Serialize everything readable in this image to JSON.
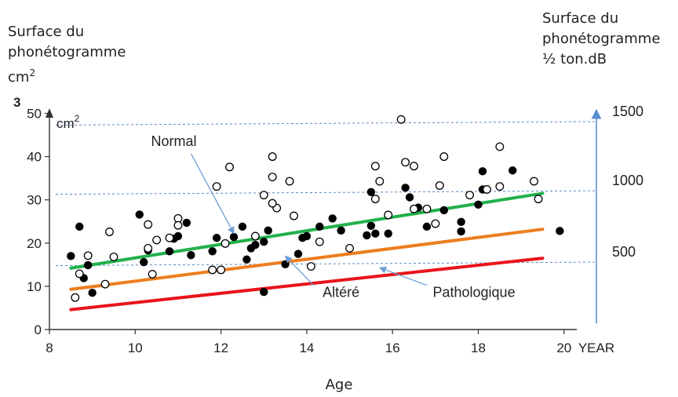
{
  "labels": {
    "left_axis_title_l1": "Surface du",
    "left_axis_title_l2": "phonétogramme",
    "left_axis_unit_base": "cm",
    "left_axis_unit_sup": "2",
    "right_axis_title_l1": "Surface du",
    "right_axis_title_l2": "phonétogramme",
    "right_axis_title_l3": "½ ton.dB",
    "x_axis_title": "Age",
    "panel_number": "3",
    "inner_unit_base": "cm",
    "inner_unit_sup": "2",
    "x_unit": "YEAR"
  },
  "colors": {
    "normal": "#22b14c",
    "altere": "#ed7d1e",
    "pathologique": "#e8141b",
    "axis": "#333333",
    "right_axis": "#5b8fd0",
    "ref_lines": "#4a7ebb",
    "arrow": "#6f9ed6"
  },
  "chart_data": {
    "type": "scatter",
    "xlim": [
      8,
      20.9
    ],
    "ylim": [
      0,
      53
    ],
    "x_ticks": [
      8,
      10,
      12,
      14,
      16,
      18,
      20
    ],
    "y_ticks": [
      0,
      10,
      20,
      30,
      40,
      50
    ],
    "right_axis_ticks": [
      {
        "label": "500",
        "y": 14.7
      },
      {
        "label": "1000",
        "y": 31.2
      },
      {
        "label": "1500",
        "y": 47.2
      }
    ],
    "regression_lines": [
      {
        "name": "Normal",
        "color_key": "normal",
        "x": [
          8.5,
          19.5
        ],
        "y": [
          14.2,
          31.5
        ]
      },
      {
        "name": "Altéré",
        "color_key": "altere",
        "x": [
          8.5,
          19.5
        ],
        "y": [
          9.3,
          23.2
        ]
      },
      {
        "name": "Pathologique",
        "color_key": "pathologique",
        "x": [
          8.5,
          19.5
        ],
        "y": [
          4.6,
          16.5
        ]
      }
    ],
    "annotations": [
      {
        "text": "Normal",
        "text_x": 10.9,
        "text_y": 42.5,
        "arrow_to_x": 12.3,
        "arrow_to_y": 22.2
      },
      {
        "text": "Altéré",
        "text_x": 14.8,
        "text_y": 7.5,
        "arrow_to_x": 13.5,
        "arrow_to_y": 17.0
      },
      {
        "text": "Pathologique",
        "text_x": 17.9,
        "text_y": 7.5,
        "arrow_to_x": 15.7,
        "arrow_to_y": 14.3
      }
    ],
    "series": [
      {
        "marker": "filled",
        "points": [
          [
            8.5,
            17.0
          ],
          [
            8.7,
            23.8
          ],
          [
            8.8,
            11.9
          ],
          [
            8.9,
            14.9
          ],
          [
            9.0,
            8.5
          ],
          [
            10.1,
            26.6
          ],
          [
            10.2,
            15.6
          ],
          [
            10.3,
            18.3
          ],
          [
            10.8,
            18.1
          ],
          [
            10.9,
            21.0
          ],
          [
            11.0,
            21.6
          ],
          [
            11.2,
            24.7
          ],
          [
            11.3,
            17.2
          ],
          [
            11.8,
            18.1
          ],
          [
            11.9,
            21.2
          ],
          [
            12.3,
            21.4
          ],
          [
            12.5,
            23.8
          ],
          [
            12.6,
            16.2
          ],
          [
            12.7,
            18.8
          ],
          [
            12.8,
            19.6
          ],
          [
            13.0,
            8.7
          ],
          [
            13.1,
            22.9
          ],
          [
            13.0,
            20.3
          ],
          [
            13.5,
            15.1
          ],
          [
            13.8,
            17.5
          ],
          [
            13.9,
            21.2
          ],
          [
            14.0,
            21.6
          ],
          [
            14.3,
            23.8
          ],
          [
            14.6,
            25.7
          ],
          [
            14.8,
            22.9
          ],
          [
            15.4,
            21.8
          ],
          [
            15.5,
            24.0
          ],
          [
            15.6,
            22.2
          ],
          [
            15.5,
            31.8
          ],
          [
            15.9,
            22.2
          ],
          [
            16.3,
            32.8
          ],
          [
            16.4,
            30.6
          ],
          [
            16.6,
            28.2
          ],
          [
            16.8,
            23.8
          ],
          [
            17.2,
            27.6
          ],
          [
            17.6,
            24.9
          ],
          [
            17.6,
            22.7
          ],
          [
            18.0,
            28.9
          ],
          [
            18.1,
            32.4
          ],
          [
            18.1,
            36.6
          ],
          [
            18.8,
            36.8
          ],
          [
            19.9,
            22.8
          ]
        ]
      },
      {
        "marker": "hollow",
        "points": [
          [
            8.6,
            7.4
          ],
          [
            8.7,
            12.9
          ],
          [
            8.9,
            17.1
          ],
          [
            9.3,
            10.5
          ],
          [
            9.4,
            22.6
          ],
          [
            9.5,
            16.8
          ],
          [
            10.3,
            18.8
          ],
          [
            10.3,
            24.3
          ],
          [
            10.4,
            12.8
          ],
          [
            10.5,
            20.7
          ],
          [
            10.8,
            21.2
          ],
          [
            11.0,
            25.7
          ],
          [
            11.0,
            24.1
          ],
          [
            11.8,
            13.8
          ],
          [
            12.0,
            13.8
          ],
          [
            11.9,
            33.1
          ],
          [
            12.1,
            19.9
          ],
          [
            12.2,
            37.6
          ],
          [
            12.8,
            21.6
          ],
          [
            13.0,
            31.1
          ],
          [
            13.2,
            40.0
          ],
          [
            13.2,
            35.3
          ],
          [
            13.3,
            28.1
          ],
          [
            13.2,
            29.2
          ],
          [
            13.6,
            34.3
          ],
          [
            13.7,
            26.3
          ],
          [
            14.1,
            14.6
          ],
          [
            14.3,
            20.3
          ],
          [
            15.0,
            18.8
          ],
          [
            15.6,
            37.8
          ],
          [
            15.6,
            30.2
          ],
          [
            15.7,
            34.3
          ],
          [
            15.9,
            26.5
          ],
          [
            16.2,
            48.6
          ],
          [
            16.3,
            38.7
          ],
          [
            16.5,
            37.8
          ],
          [
            16.5,
            27.9
          ],
          [
            16.8,
            27.9
          ],
          [
            17.0,
            24.5
          ],
          [
            17.1,
            33.3
          ],
          [
            17.2,
            40.0
          ],
          [
            17.8,
            31.1
          ],
          [
            18.2,
            32.4
          ],
          [
            18.5,
            33.1
          ],
          [
            18.5,
            42.3
          ],
          [
            19.3,
            34.3
          ],
          [
            19.4,
            30.2
          ]
        ]
      }
    ]
  }
}
